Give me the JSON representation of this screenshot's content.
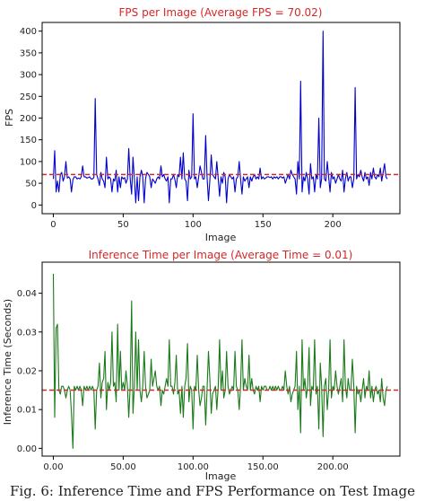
{
  "chart_data": [
    {
      "type": "line",
      "title": "FPS per Image (Average FPS = 70.02)",
      "xlabel": "Image",
      "ylabel": "FPS",
      "xlim": [
        -8,
        248
      ],
      "ylim": [
        -20,
        420
      ],
      "xticks": [
        0,
        50,
        100,
        150,
        200
      ],
      "yticks": [
        0,
        50,
        100,
        150,
        200,
        250,
        300,
        350,
        400
      ],
      "reference_line": {
        "value": 70.02,
        "style": "dashed",
        "color": "#d62728"
      },
      "series": [
        {
          "color": "#0000cc",
          "values": [
            60,
            125,
            30,
            55,
            30,
            70,
            75,
            55,
            65,
            100,
            62,
            65,
            60,
            30,
            58,
            65,
            65,
            60,
            62,
            60,
            65,
            90,
            65,
            65,
            62,
            63,
            65,
            60,
            60,
            63,
            245,
            70,
            60,
            45,
            75,
            60,
            55,
            40,
            110,
            60,
            65,
            60,
            30,
            60,
            55,
            80,
            30,
            65,
            40,
            65,
            60,
            63,
            50,
            60,
            130,
            60,
            25,
            110,
            60,
            5,
            65,
            10,
            65,
            80,
            65,
            5,
            60,
            75,
            70,
            65,
            40,
            60,
            55,
            50,
            60,
            65,
            60,
            90,
            65,
            70,
            60,
            55,
            65,
            5,
            60,
            60,
            70,
            58,
            40,
            70,
            65,
            110,
            60,
            120,
            60,
            55,
            10,
            80,
            60,
            65,
            210,
            60,
            65,
            40,
            65,
            90,
            75,
            60,
            60,
            160,
            65,
            10,
            55,
            115,
            70,
            65,
            60,
            100,
            60,
            20,
            65,
            50,
            75,
            65,
            5,
            60,
            70,
            65,
            60,
            65,
            30,
            60,
            65,
            100,
            60,
            25,
            65,
            55,
            60,
            65,
            40,
            65,
            55,
            65,
            70,
            60,
            65,
            60,
            85,
            60,
            65,
            60,
            62,
            65,
            65,
            63,
            65,
            60,
            65,
            62,
            65,
            60,
            65,
            65,
            62,
            65,
            50,
            60,
            70,
            60,
            80,
            70,
            65,
            60,
            25,
            100,
            60,
            285,
            30,
            65,
            55,
            75,
            60,
            25,
            95,
            60,
            65,
            30,
            70,
            60,
            200,
            40,
            60,
            400,
            60,
            55,
            100,
            65,
            30,
            75,
            60,
            65,
            50,
            60,
            70,
            60,
            55,
            80,
            30,
            60,
            75,
            55,
            65,
            65,
            40,
            60,
            270,
            60,
            70,
            65,
            80,
            65,
            55,
            75,
            60,
            65,
            45,
            75,
            60,
            85,
            65,
            60,
            70,
            65,
            85,
            55,
            75,
            95,
            65,
            60
          ]
        }
      ]
    },
    {
      "type": "line",
      "title": "Inference Time per Image (Average Time = 0.01)",
      "xlabel": "Image",
      "ylabel": "Inference Time (Seconds)",
      "xlim": [
        -8,
        248
      ],
      "ylim": [
        -0.002,
        0.048
      ],
      "xticks": [
        0,
        50,
        100,
        150,
        200
      ],
      "yticks": [
        0.0,
        0.01,
        0.02,
        0.03,
        0.04
      ],
      "tick_format": "2dp",
      "reference_line": {
        "value": 0.015,
        "style": "dashed",
        "color": "#d62728"
      },
      "series": [
        {
          "color": "#1a7a1a",
          "values": [
            0.045,
            0.008,
            0.031,
            0.032,
            0.015,
            0.014,
            0.016,
            0.016,
            0.015,
            0.013,
            0.015,
            0.016,
            0.015,
            0.009,
            0.0,
            0.016,
            0.015,
            0.016,
            0.015,
            0.016,
            0.015,
            0.011,
            0.016,
            0.015,
            0.016,
            0.015,
            0.016,
            0.015,
            0.016,
            0.015,
            0.005,
            0.015,
            0.016,
            0.022,
            0.013,
            0.017,
            0.018,
            0.025,
            0.01,
            0.017,
            0.015,
            0.017,
            0.03,
            0.016,
            0.017,
            0.012,
            0.032,
            0.015,
            0.025,
            0.015,
            0.017,
            0.015,
            0.02,
            0.016,
            0.008,
            0.016,
            0.038,
            0.009,
            0.016,
            0.03,
            0.015,
            0.028,
            0.015,
            0.012,
            0.016,
            0.025,
            0.016,
            0.013,
            0.014,
            0.015,
            0.023,
            0.016,
            0.018,
            0.02,
            0.016,
            0.015,
            0.016,
            0.011,
            0.015,
            0.014,
            0.016,
            0.018,
            0.016,
            0.028,
            0.016,
            0.016,
            0.014,
            0.017,
            0.024,
            0.014,
            0.015,
            0.009,
            0.016,
            0.008,
            0.016,
            0.018,
            0.027,
            0.012,
            0.016,
            0.015,
            0.005,
            0.016,
            0.015,
            0.024,
            0.015,
            0.011,
            0.013,
            0.016,
            0.016,
            0.006,
            0.015,
            0.025,
            0.018,
            0.009,
            0.014,
            0.015,
            0.016,
            0.01,
            0.016,
            0.028,
            0.015,
            0.02,
            0.013,
            0.015,
            0.025,
            0.016,
            0.014,
            0.015,
            0.016,
            0.015,
            0.025,
            0.016,
            0.015,
            0.01,
            0.016,
            0.028,
            0.015,
            0.018,
            0.016,
            0.015,
            0.024,
            0.015,
            0.018,
            0.015,
            0.014,
            0.016,
            0.015,
            0.016,
            0.012,
            0.016,
            0.015,
            0.016,
            0.016,
            0.015,
            0.015,
            0.016,
            0.015,
            0.016,
            0.015,
            0.016,
            0.015,
            0.016,
            0.015,
            0.015,
            0.016,
            0.015,
            0.02,
            0.016,
            0.014,
            0.016,
            0.012,
            0.014,
            0.015,
            0.016,
            0.025,
            0.01,
            0.016,
            0.004,
            0.028,
            0.015,
            0.018,
            0.013,
            0.016,
            0.026,
            0.011,
            0.016,
            0.015,
            0.028,
            0.014,
            0.016,
            0.005,
            0.022,
            0.016,
            0.003,
            0.016,
            0.018,
            0.01,
            0.015,
            0.028,
            0.013,
            0.016,
            0.015,
            0.02,
            0.016,
            0.014,
            0.016,
            0.018,
            0.012,
            0.028,
            0.016,
            0.013,
            0.018,
            0.015,
            0.015,
            0.023,
            0.016,
            0.004,
            0.016,
            0.014,
            0.015,
            0.012,
            0.015,
            0.018,
            0.013,
            0.016,
            0.015,
            0.02,
            0.013,
            0.016,
            0.012,
            0.015,
            0.016,
            0.014,
            0.015,
            0.012,
            0.018,
            0.013,
            0.011,
            0.015,
            0.016
          ]
        }
      ]
    }
  ],
  "caption": "Fig. 6: Inference Time and FPS Performance on Test Image"
}
